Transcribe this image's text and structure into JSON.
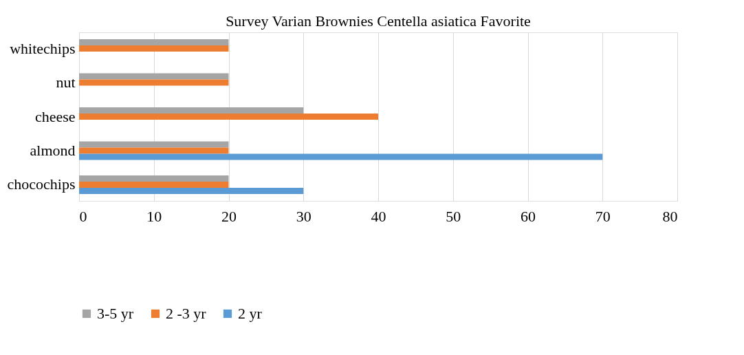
{
  "chart_data": {
    "type": "bar",
    "orientation": "horizontal",
    "title": "Survey Varian Brownies Centella asiatica Favorite",
    "categories": [
      "whitechips",
      "nut",
      "cheese",
      "almond",
      "chocochips"
    ],
    "series": [
      {
        "name": "3-5 yr",
        "color": "#a5a5a5",
        "values": [
          20,
          20,
          30,
          20,
          20
        ]
      },
      {
        "name": "2 -3 yr",
        "color": "#ed7d31",
        "values": [
          20,
          20,
          40,
          20,
          20
        ]
      },
      {
        "name": "2 yr",
        "color": "#5b9bd5",
        "values": [
          null,
          null,
          null,
          70,
          30
        ]
      }
    ],
    "xlim": [
      0,
      80
    ],
    "xticks": [
      0,
      10,
      20,
      30,
      40,
      50,
      60,
      70,
      80
    ],
    "grid": "x",
    "legend": "bottom"
  }
}
